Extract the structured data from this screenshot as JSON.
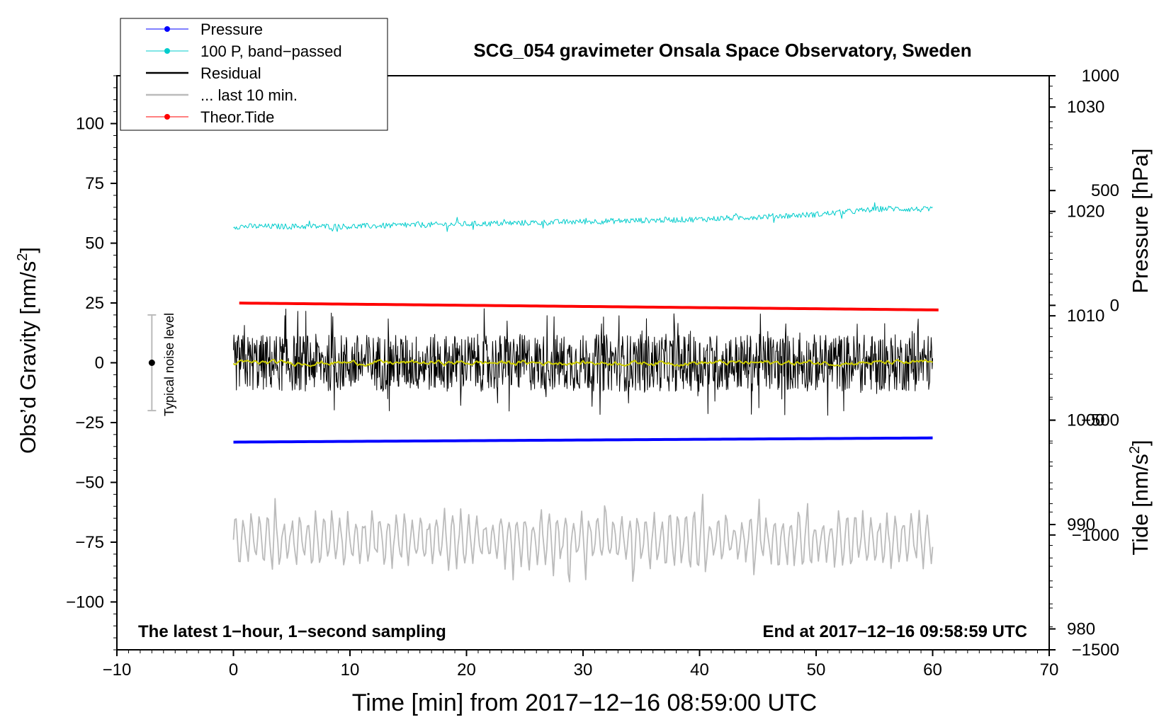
{
  "chart_data": {
    "type": "line",
    "title": "SCG_054 gravimeter Onsala Space Observatory, Sweden",
    "xlabel": "Time [min] from 2017−12−16 08:59:00 UTC",
    "ylabel_left": "Obs’d Gravity [nm/s²]",
    "ylabel_left_main": "Obs’d Gravity [nm/s",
    "ylabel_left_sup": "2",
    "ylabel_left_end": "]",
    "ylabel_right_pressure": "Pressure [hPa]",
    "ylabel_right_tide_main": "Tide [nm/s",
    "ylabel_right_tide_sup": "2",
    "ylabel_right_tide_end": "]",
    "xlim": [
      -10,
      70
    ],
    "ylim": [
      -120,
      120
    ],
    "pressure_ylim": [
      978,
      1033
    ],
    "tide_ylim": [
      -1500,
      1000
    ],
    "x_ticks": [
      -10,
      0,
      10,
      20,
      30,
      40,
      50,
      60,
      70
    ],
    "x_tick_labels": [
      "−10",
      "0",
      "10",
      "20",
      "30",
      "40",
      "50",
      "60",
      "70"
    ],
    "y_ticks": [
      -100,
      -75,
      -50,
      -25,
      0,
      25,
      50,
      75,
      100
    ],
    "y_tick_labels": [
      "−100",
      "−75",
      "−50",
      "−25",
      "0",
      "25",
      "50",
      "75",
      "100"
    ],
    "pressure_ticks": [
      980,
      990,
      1000,
      1010,
      1020,
      1030
    ],
    "pressure_tick_labels": [
      "980",
      "990",
      "1000",
      "1010",
      "1020",
      "1030"
    ],
    "tide_ticks": [
      -1500,
      -1000,
      -500,
      0,
      500,
      1000
    ],
    "tide_tick_labels": [
      "−1500",
      "−1000",
      "−500",
      "0",
      "500",
      "1000"
    ],
    "legend": [
      {
        "label": "Pressure",
        "color": "#0000ff",
        "marker": true
      },
      {
        "label": "100 P, band−passed",
        "color": "#00cccc",
        "marker": true
      },
      {
        "label": "Residual",
        "color": "#000000",
        "marker": false
      },
      {
        "label": "... last 10 min.",
        "color": "#bbbbbb",
        "marker": false
      },
      {
        "label": "Theor.Tide",
        "color": "#ff0000",
        "marker": true
      }
    ],
    "annotations": {
      "bottom_left": "The latest 1−hour, 1−second sampling",
      "bottom_right": "End at 2017−12−16 09:58:59 UTC",
      "noise_label": "Typical noise level"
    },
    "noise_bar": {
      "x": -7,
      "center": 0,
      "low": -20,
      "high": 20
    },
    "series": [
      {
        "name": "Pressure",
        "color": "#0000ff",
        "axis": "pressure",
        "x": [
          0,
          60
        ],
        "values": [
          997.9,
          998.3
        ]
      },
      {
        "name": "100 P, band−passed",
        "color": "#00cccc",
        "axis": "gravity",
        "x": [
          0,
          10,
          20,
          30,
          40,
          50,
          56,
          60
        ],
        "values": [
          57,
          57,
          58,
          59,
          60,
          62,
          64.5,
          64
        ],
        "noise_amplitude": 1.2
      },
      {
        "name": "Residual",
        "color": "#000000",
        "axis": "gravity",
        "x": [
          0,
          60
        ],
        "values": [
          0,
          0
        ],
        "noise_amplitude": 12,
        "extremes": {
          "max": 24,
          "min": -24
        }
      },
      {
        "name": "Residual smoothed",
        "color": "#cccc00",
        "axis": "gravity",
        "x": [
          0,
          60
        ],
        "values": [
          0,
          0
        ],
        "noise_amplitude": 1.2
      },
      {
        "name": "... last 10 min.",
        "color": "#bbbbbb",
        "axis": "gravity",
        "x": [
          0,
          60
        ],
        "values": [
          -74,
          -74
        ],
        "noise_amplitude": 10,
        "extremes": {
          "max": -55,
          "min": -96
        }
      },
      {
        "name": "Theor.Tide",
        "color": "#ff0000",
        "axis": "tide",
        "x": [
          0.5,
          60.5
        ],
        "values": [
          10,
          -20
        ]
      }
    ]
  }
}
